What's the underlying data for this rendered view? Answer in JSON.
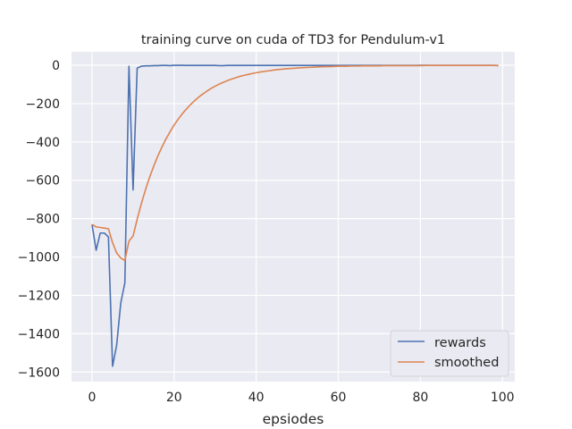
{
  "chart_data": {
    "type": "line",
    "title": "training curve on cuda of TD3 for Pendulum-v1",
    "xlabel": "epsiodes",
    "ylabel": "",
    "xlim": [
      -5,
      103
    ],
    "ylim": [
      -1650,
      70
    ],
    "xticks": [
      0,
      20,
      40,
      60,
      80,
      100
    ],
    "yticks": [
      0,
      -200,
      -400,
      -600,
      -800,
      -1000,
      -1200,
      -1400,
      -1600
    ],
    "grid": true,
    "legend_position": "bottom-right",
    "colors": {
      "background": "#eaeaf2",
      "grid": "#ffffff",
      "rewards": "#4c72b0",
      "smoothed": "#dd8452"
    },
    "series": [
      {
        "name": "rewards",
        "x": [
          0,
          1,
          2,
          3,
          4,
          5,
          6,
          7,
          8,
          9,
          10,
          11,
          12,
          13,
          14,
          15,
          16,
          17,
          18,
          19,
          20,
          21,
          22,
          23,
          24,
          25,
          26,
          27,
          28,
          29,
          30,
          31,
          32,
          33,
          34,
          35,
          36,
          37,
          38,
          39,
          40,
          41,
          42,
          43,
          44,
          45,
          46,
          47,
          48,
          49,
          50,
          51,
          52,
          53,
          54,
          55,
          56,
          57,
          58,
          59,
          60,
          61,
          62,
          63,
          64,
          65,
          66,
          67,
          68,
          69,
          70,
          71,
          72,
          73,
          74,
          75,
          76,
          77,
          78,
          79,
          80,
          81,
          82,
          83,
          84,
          85,
          86,
          87,
          88,
          89,
          90,
          91,
          92,
          93,
          94,
          95,
          96,
          97,
          98,
          99
        ],
        "y": [
          -830,
          -965,
          -875,
          -875,
          -895,
          -1570,
          -1460,
          -1240,
          -1135,
          -5,
          -650,
          -15,
          -5,
          -3,
          -3,
          -2,
          -2,
          -1,
          -1,
          -2,
          0,
          0,
          0,
          -1,
          -1,
          -1,
          -1,
          -1,
          -1,
          -1,
          -1,
          -2,
          -2,
          -1,
          -1,
          -1,
          -1,
          -1,
          -1,
          -1,
          -1,
          -1,
          -1,
          -1,
          -1,
          -1,
          -1,
          -1,
          -1,
          -1,
          -1,
          -1,
          -1,
          -1,
          -1,
          -1,
          -1,
          -1,
          -1,
          -1,
          -1,
          -1,
          -1,
          -1,
          -1,
          -1,
          -1,
          -1,
          -1,
          -1,
          -1,
          -1,
          -1,
          -1,
          -1,
          -1,
          -1,
          -1,
          -1,
          -1,
          0,
          0,
          -1,
          -1,
          -1,
          -1,
          -1,
          -1,
          -1,
          -1,
          -1,
          -1,
          -1,
          -1,
          -1,
          -1,
          -1,
          -1,
          -1,
          -2
        ]
      },
      {
        "name": "smoothed",
        "x": [
          0,
          1,
          2,
          3,
          4,
          5,
          6,
          7,
          8,
          9,
          10,
          11,
          12,
          13,
          14,
          15,
          16,
          17,
          18,
          19,
          20,
          21,
          22,
          23,
          24,
          25,
          26,
          27,
          28,
          29,
          30,
          31,
          32,
          33,
          34,
          35,
          36,
          37,
          38,
          39,
          40,
          41,
          42,
          43,
          44,
          45,
          46,
          47,
          48,
          49,
          50,
          51,
          52,
          53,
          54,
          55,
          56,
          57,
          58,
          59,
          60,
          61,
          62,
          63,
          64,
          65,
          66,
          67,
          68,
          69,
          70,
          71,
          72,
          73,
          74,
          75,
          76,
          77,
          78,
          79,
          80,
          81,
          82,
          83,
          84,
          85,
          86,
          87,
          88,
          89,
          90,
          91,
          92,
          93,
          94,
          95,
          96,
          97,
          98,
          99
        ],
        "y": [
          -830,
          -843,
          -846,
          -849,
          -853,
          -925,
          -979,
          -1005,
          -1018,
          -917,
          -891,
          -803,
          -723,
          -651,
          -586,
          -528,
          -475,
          -428,
          -385,
          -347,
          -312,
          -281,
          -253,
          -228,
          -205,
          -185,
          -166,
          -150,
          -135,
          -121,
          -109,
          -98,
          -89,
          -80,
          -72,
          -65,
          -58,
          -53,
          -48,
          -43,
          -39,
          -35,
          -32,
          -29,
          -26,
          -23,
          -21,
          -19,
          -17,
          -16,
          -14,
          -13,
          -12,
          -11,
          -10,
          -9,
          -8,
          -7,
          -7,
          -6,
          -5,
          -5,
          -5,
          -4,
          -4,
          -4,
          -3,
          -3,
          -3,
          -3,
          -3,
          -2,
          -2,
          -2,
          -2,
          -2,
          -2,
          -2,
          -2,
          -2,
          -2,
          -1,
          -1,
          -1,
          -1,
          -1,
          -1,
          -1,
          -1,
          -1,
          -1,
          -1,
          -1,
          -1,
          -1,
          -1,
          -1,
          -1,
          -1,
          -1
        ]
      }
    ]
  }
}
